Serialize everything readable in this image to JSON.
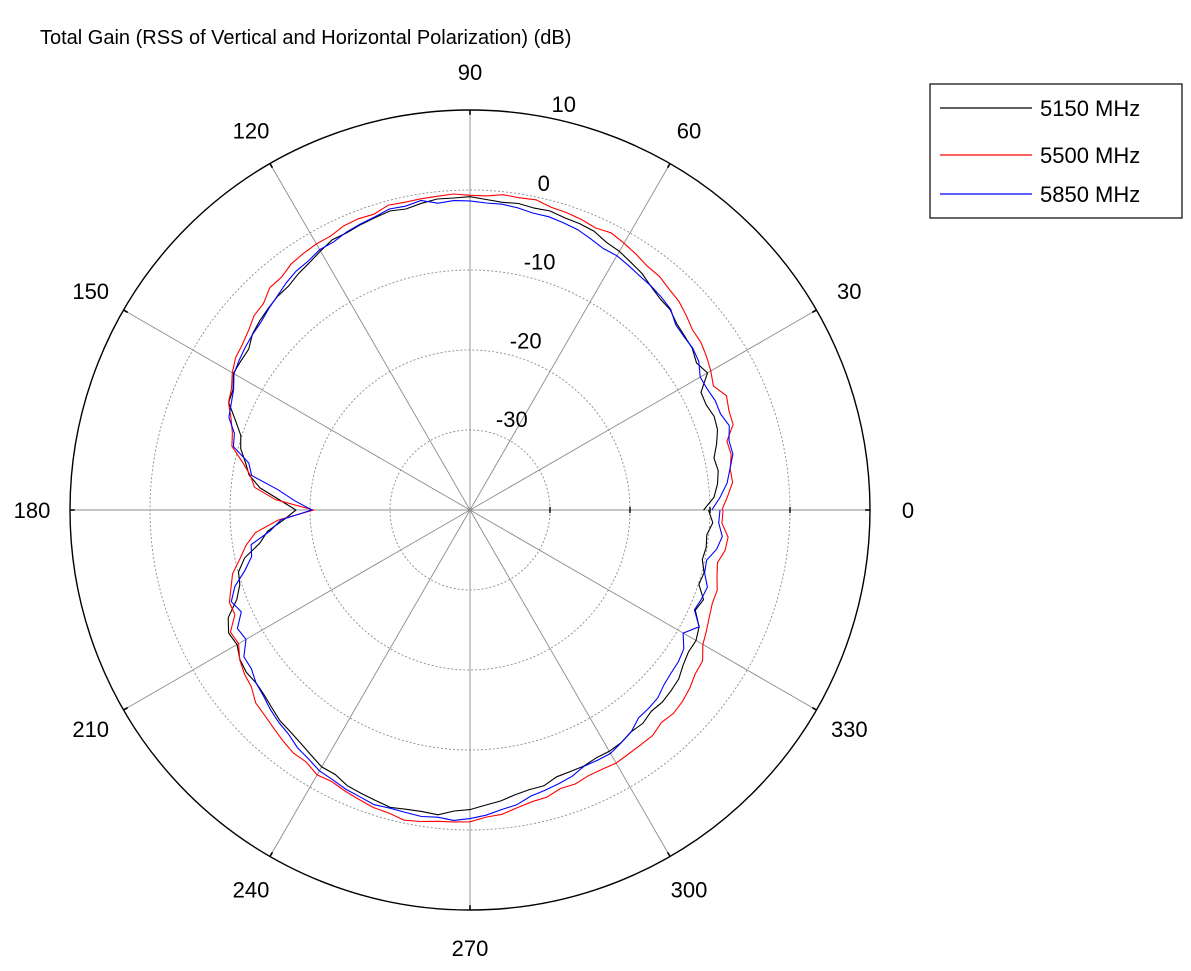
{
  "chart_data": {
    "type": "polar-line",
    "title": "Total Gain (RSS of Vertical and Horizontal Polarization) (dB)",
    "theta_unit": "degrees",
    "theta_labels": [
      "0",
      "30",
      "60",
      "90",
      "120",
      "150",
      "180",
      "210",
      "240",
      "270",
      "300",
      "330"
    ],
    "theta_label_values": [
      0,
      30,
      60,
      90,
      120,
      150,
      180,
      210,
      240,
      270,
      300,
      330
    ],
    "r_range": [
      -40,
      10
    ],
    "r_ticks": [
      -30,
      -20,
      -10,
      0,
      10
    ],
    "r_tick_labels": [
      "-30",
      "-20",
      "-10",
      "0",
      "10"
    ],
    "r_label_angle_deg": 80,
    "grid": true,
    "legend_position": "top-right",
    "series": [
      {
        "name": "5150 MHz",
        "color": "#000000",
        "theta": [
          0,
          10,
          20,
          30,
          40,
          50,
          60,
          70,
          80,
          90,
          100,
          110,
          120,
          130,
          140,
          150,
          160,
          170,
          175,
          180,
          185,
          190,
          200,
          210,
          220,
          230,
          240,
          250,
          260,
          270,
          280,
          290,
          300,
          310,
          320,
          330,
          340,
          350
        ],
        "r": [
          -10,
          -8.5,
          -7.5,
          -6.5,
          -5.5,
          -4,
          -2.5,
          -1.5,
          -1.2,
          -1.0,
          -1.2,
          -1.8,
          -2.5,
          -4,
          -5,
          -6.5,
          -8.5,
          -12,
          -14,
          -19,
          -16,
          -12,
          -8.5,
          -6,
          -5.5,
          -4.5,
          -3,
          -2.0,
          -1.5,
          -2.5,
          -4,
          -5,
          -5,
          -6,
          -6.5,
          -8,
          -9.5,
          -10
        ]
      },
      {
        "name": "5500 MHz",
        "color": "#ff0000",
        "theta": [
          0,
          10,
          20,
          30,
          40,
          50,
          60,
          70,
          80,
          90,
          100,
          110,
          120,
          130,
          140,
          150,
          160,
          170,
          175,
          180,
          185,
          190,
          200,
          210,
          220,
          230,
          240,
          250,
          260,
          270,
          280,
          290,
          300,
          310,
          320,
          330,
          340,
          350
        ],
        "r": [
          -8,
          -7,
          -6,
          -5,
          -4,
          -2.5,
          -1.5,
          -1,
          -0.5,
          -0.5,
          -0.5,
          -1,
          -1.5,
          -2.5,
          -4,
          -5.5,
          -7.5,
          -11,
          -14,
          -20,
          -14,
          -11.5,
          -8,
          -6,
          -4.5,
          -3,
          -2,
          -1,
          -0.5,
          -1,
          -2.5,
          -3.5,
          -3.5,
          -4,
          -4.5,
          -6,
          -7,
          -8
        ]
      },
      {
        "name": "5850 MHz",
        "color": "#0000ff",
        "theta": [
          0,
          10,
          20,
          30,
          40,
          50,
          60,
          70,
          80,
          90,
          100,
          110,
          120,
          130,
          140,
          150,
          160,
          170,
          175,
          180,
          185,
          190,
          200,
          210,
          220,
          230,
          240,
          250,
          260,
          270,
          280,
          290,
          300,
          310,
          320,
          330,
          340,
          350
        ],
        "r": [
          -9,
          -7,
          -6.5,
          -6,
          -5.5,
          -4,
          -3.5,
          -2.5,
          -2,
          -1.5,
          -1,
          -1.5,
          -2.5,
          -3.5,
          -5,
          -6,
          -8,
          -12,
          -17,
          -20,
          -15,
          -12,
          -9,
          -7,
          -5.5,
          -4,
          -2.5,
          -1.5,
          -1,
          -1.5,
          -3,
          -4.5,
          -5,
          -6.5,
          -7.5,
          -8.5,
          -9,
          -9
        ]
      }
    ]
  }
}
